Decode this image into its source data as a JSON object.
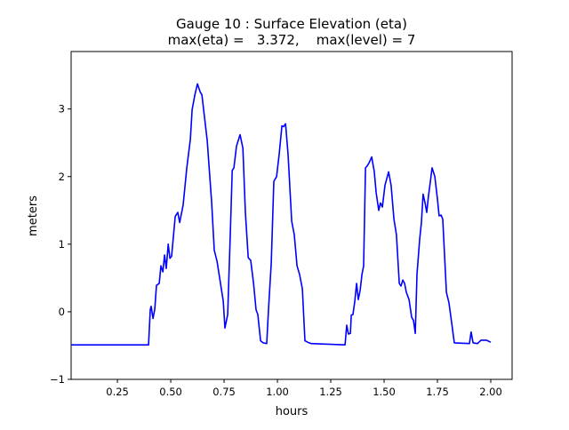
{
  "chart_data": {
    "type": "line",
    "title": "Gauge 10 : Surface Elevation (eta)",
    "subtitle": "max(eta) =   3.372,    max(level) = 7",
    "xlabel": "hours",
    "ylabel": "meters",
    "xlim": [
      0.033,
      2.1
    ],
    "ylim": [
      -1,
      3.85
    ],
    "xticks": [
      0.25,
      0.5,
      0.75,
      1.0,
      1.25,
      1.5,
      1.75,
      2.0
    ],
    "xtick_labels": [
      "0.25",
      "0.50",
      "0.75",
      "1.00",
      "1.25",
      "1.50",
      "1.75",
      "2.00"
    ],
    "yticks": [
      -1,
      0,
      1,
      2,
      3
    ],
    "ytick_labels": [
      "−1",
      "0",
      "1",
      "2",
      "3"
    ],
    "grid": false,
    "series": [
      {
        "name": "eta",
        "color": "#0000ff",
        "x": [
          0.033,
          0.396,
          0.404,
          0.408,
          0.417,
          0.425,
          0.433,
          0.446,
          0.454,
          0.463,
          0.471,
          0.479,
          0.488,
          0.496,
          0.504,
          0.521,
          0.533,
          0.542,
          0.558,
          0.575,
          0.592,
          0.6,
          0.613,
          0.625,
          0.638,
          0.646,
          0.671,
          0.692,
          0.704,
          0.717,
          0.733,
          0.746,
          0.754,
          0.767,
          0.779,
          0.788,
          0.796,
          0.808,
          0.825,
          0.838,
          0.85,
          0.863,
          0.875,
          0.888,
          0.9,
          0.908,
          0.921,
          0.933,
          0.95,
          0.958,
          0.971,
          0.983,
          0.996,
          1.008,
          1.021,
          1.029,
          1.038,
          1.05,
          1.067,
          1.079,
          1.092,
          1.104,
          1.117,
          1.129,
          1.142,
          1.158,
          1.317,
          1.325,
          1.333,
          1.342,
          1.346,
          1.354,
          1.363,
          1.371,
          1.379,
          1.388,
          1.396,
          1.404,
          1.413,
          1.421,
          1.429,
          1.442,
          1.454,
          1.463,
          1.475,
          1.483,
          1.492,
          1.504,
          1.521,
          1.533,
          1.546,
          1.558,
          1.571,
          1.579,
          1.588,
          1.596,
          1.604,
          1.617,
          1.629,
          1.638,
          1.646,
          1.654,
          1.667,
          1.675,
          1.683,
          1.692,
          1.7,
          1.708,
          1.717,
          1.725,
          1.738,
          1.75,
          1.758,
          1.767,
          1.775,
          1.792,
          1.804,
          1.817,
          1.829,
          1.9,
          1.908,
          1.917,
          1.938,
          1.954,
          1.979,
          2.0
        ],
        "y": [
          -0.49,
          -0.49,
          0.03,
          0.08,
          -0.1,
          0.04,
          0.39,
          0.42,
          0.68,
          0.59,
          0.84,
          0.64,
          1.0,
          0.79,
          0.82,
          1.41,
          1.47,
          1.32,
          1.58,
          2.13,
          2.55,
          2.99,
          3.21,
          3.372,
          3.25,
          3.21,
          2.53,
          1.61,
          0.91,
          0.75,
          0.42,
          0.16,
          -0.24,
          -0.04,
          1.14,
          2.09,
          2.13,
          2.45,
          2.62,
          2.42,
          1.47,
          0.8,
          0.76,
          0.42,
          0.03,
          -0.04,
          -0.43,
          -0.46,
          -0.47,
          0.03,
          0.72,
          1.93,
          2.0,
          2.33,
          2.75,
          2.74,
          2.78,
          2.33,
          1.34,
          1.14,
          0.68,
          0.55,
          0.34,
          -0.43,
          -0.45,
          -0.47,
          -0.49,
          -0.2,
          -0.33,
          -0.32,
          -0.05,
          -0.04,
          0.16,
          0.42,
          0.18,
          0.32,
          0.55,
          0.68,
          2.13,
          2.16,
          2.2,
          2.29,
          2.07,
          1.76,
          1.5,
          1.61,
          1.55,
          1.87,
          2.07,
          1.87,
          1.37,
          1.14,
          0.42,
          0.38,
          0.47,
          0.42,
          0.29,
          0.18,
          -0.08,
          -0.13,
          -0.32,
          0.55,
          1.08,
          1.32,
          1.74,
          1.61,
          1.47,
          1.71,
          1.93,
          2.13,
          2.0,
          1.67,
          1.42,
          1.43,
          1.37,
          0.29,
          0.13,
          -0.17,
          -0.46,
          -0.47,
          -0.3,
          -0.46,
          -0.47,
          -0.42,
          -0.42,
          -0.45
        ]
      }
    ]
  }
}
